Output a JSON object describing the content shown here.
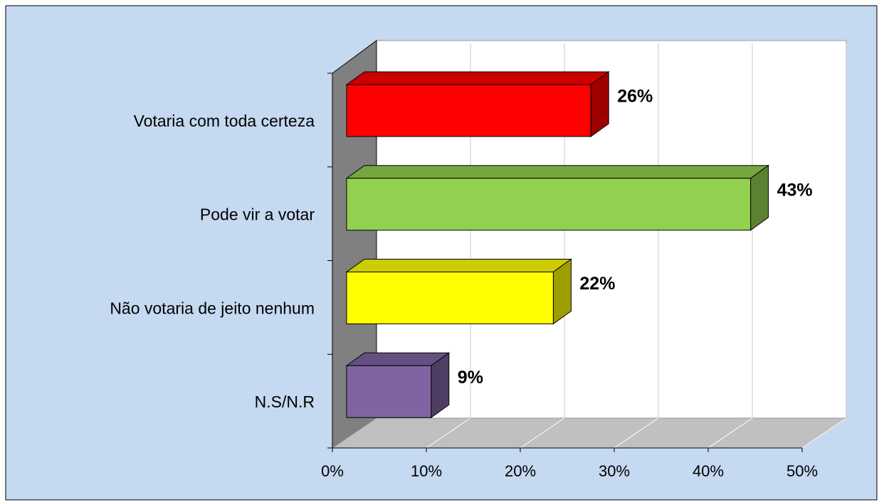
{
  "chart_data": {
    "type": "bar3d-horizontal",
    "categories": [
      "Votaria com toda certeza",
      "Pode vir a votar",
      "Não votaria de jeito nenhum",
      "N.S/N.R"
    ],
    "values": [
      26,
      43,
      22,
      9
    ],
    "value_labels": [
      "26%",
      "43%",
      "22%",
      "9%"
    ],
    "colors": [
      "#ff0000",
      "#92d050",
      "#ffff00",
      "#8064a2"
    ],
    "xlim": [
      0,
      50
    ],
    "xticks": [
      {
        "value": 0,
        "label": "0%"
      },
      {
        "value": 10,
        "label": "10%"
      },
      {
        "value": 20,
        "label": "20%"
      },
      {
        "value": 30,
        "label": "30%"
      },
      {
        "value": 40,
        "label": "40%"
      },
      {
        "value": 50,
        "label": "50%"
      }
    ],
    "grid": true
  }
}
